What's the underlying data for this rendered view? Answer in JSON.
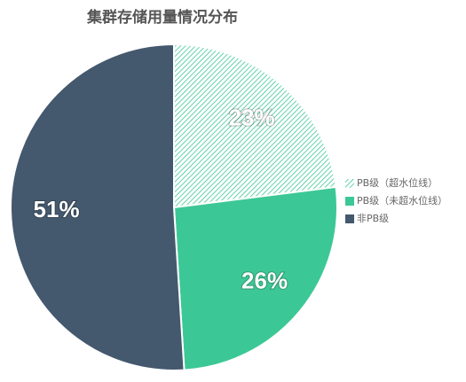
{
  "chart_data": {
    "type": "pie",
    "title": "集群存储用量情况分布",
    "categories": [
      "PB级（超水位线）",
      "PB级（未超水位线）",
      "非PB级"
    ],
    "values": [
      23,
      26,
      51
    ],
    "value_labels": [
      "23%",
      "26%",
      "51%"
    ],
    "colors": [
      "#3cc896",
      "#3cc896",
      "#44586e"
    ],
    "hatch": [
      true,
      false,
      false
    ],
    "legend": "right"
  }
}
